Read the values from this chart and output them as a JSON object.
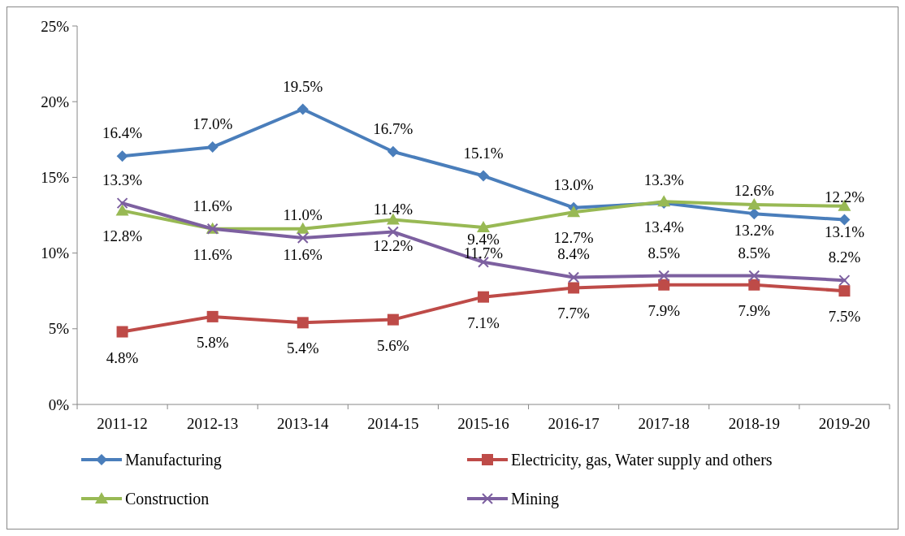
{
  "chart_data": {
    "type": "line",
    "categories": [
      "2011-12",
      "2012-13",
      "2013-14",
      "2014-15",
      "2015-16",
      "2016-17",
      "2017-18",
      "2018-19",
      "2019-20"
    ],
    "ylim": [
      0,
      25
    ],
    "yticks": [
      {
        "value": 0,
        "label": "0%"
      },
      {
        "value": 5,
        "label": "5%"
      },
      {
        "value": 10,
        "label": "10%"
      },
      {
        "value": 15,
        "label": "15%"
      },
      {
        "value": 20,
        "label": "20%"
      },
      {
        "value": 25,
        "label": "25%"
      }
    ],
    "grid": false,
    "legend": "bottom",
    "series": [
      {
        "name": "Manufacturing",
        "color": "#4a7ebb",
        "marker": "diamond",
        "values": [
          16.4,
          17.0,
          19.5,
          16.7,
          15.1,
          13.0,
          13.3,
          12.6,
          12.2
        ],
        "value_labels": [
          "16.4%",
          "17.0%",
          "19.5%",
          "16.7%",
          "15.1%",
          "13.0%",
          "13.3%",
          "12.6%",
          "12.2%"
        ]
      },
      {
        "name": "Electricity, gas, Water supply and others",
        "color": "#be4b48",
        "marker": "square",
        "values": [
          4.8,
          5.8,
          5.4,
          5.6,
          7.1,
          7.7,
          7.9,
          7.9,
          7.5
        ],
        "value_labels": [
          "4.8%",
          "5.8%",
          "5.4%",
          "5.6%",
          "7.1%",
          "7.7%",
          "7.9%",
          "7.9%",
          "7.5%"
        ]
      },
      {
        "name": "Construction",
        "color": "#98b954",
        "marker": "triangle",
        "values": [
          12.8,
          11.6,
          11.6,
          12.2,
          11.7,
          12.7,
          13.4,
          13.2,
          13.1
        ],
        "value_labels": [
          "12.8%",
          "11.6%",
          "11.6%",
          "12.2%",
          "11.7%",
          "12.7%",
          "13.4%",
          "13.2%",
          "13.1%"
        ]
      },
      {
        "name": "Mining",
        "color": "#7d60a0",
        "marker": "cross",
        "values": [
          13.3,
          11.6,
          11.0,
          11.4,
          9.4,
          8.4,
          8.5,
          8.5,
          8.2
        ],
        "value_labels": [
          "13.3%",
          "11.6%",
          "11.0%",
          "11.4%",
          "9.4%",
          "8.4%",
          "8.5%",
          "8.5%",
          "8.2%"
        ]
      }
    ]
  }
}
